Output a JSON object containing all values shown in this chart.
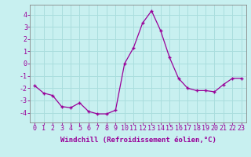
{
  "x": [
    0,
    1,
    2,
    3,
    4,
    5,
    6,
    7,
    8,
    9,
    10,
    11,
    12,
    13,
    14,
    15,
    16,
    17,
    18,
    19,
    20,
    21,
    22,
    23
  ],
  "y": [
    -1.8,
    -2.4,
    -2.6,
    -3.5,
    -3.6,
    -3.2,
    -3.9,
    -4.1,
    -4.1,
    -3.8,
    0.0,
    1.3,
    3.3,
    4.3,
    2.7,
    0.5,
    -1.2,
    -2.0,
    -2.2,
    -2.2,
    -2.3,
    -1.7,
    -1.2,
    -1.2
  ],
  "line_color": "#990099",
  "marker": "+",
  "bg_color": "#c8f0f0",
  "grid_color": "#aadddd",
  "xlabel": "Windchill (Refroidissement éolien,°C)",
  "ylim": [
    -4.8,
    4.8
  ],
  "xlim": [
    -0.5,
    23.5
  ],
  "yticks": [
    -4,
    -3,
    -2,
    -1,
    0,
    1,
    2,
    3,
    4
  ],
  "xticks": [
    0,
    1,
    2,
    3,
    4,
    5,
    6,
    7,
    8,
    9,
    10,
    11,
    12,
    13,
    14,
    15,
    16,
    17,
    18,
    19,
    20,
    21,
    22,
    23
  ],
  "tick_color": "#990099",
  "label_color": "#990099",
  "label_fontsize": 6.5,
  "tick_fontsize": 6,
  "spine_color": "#888888"
}
